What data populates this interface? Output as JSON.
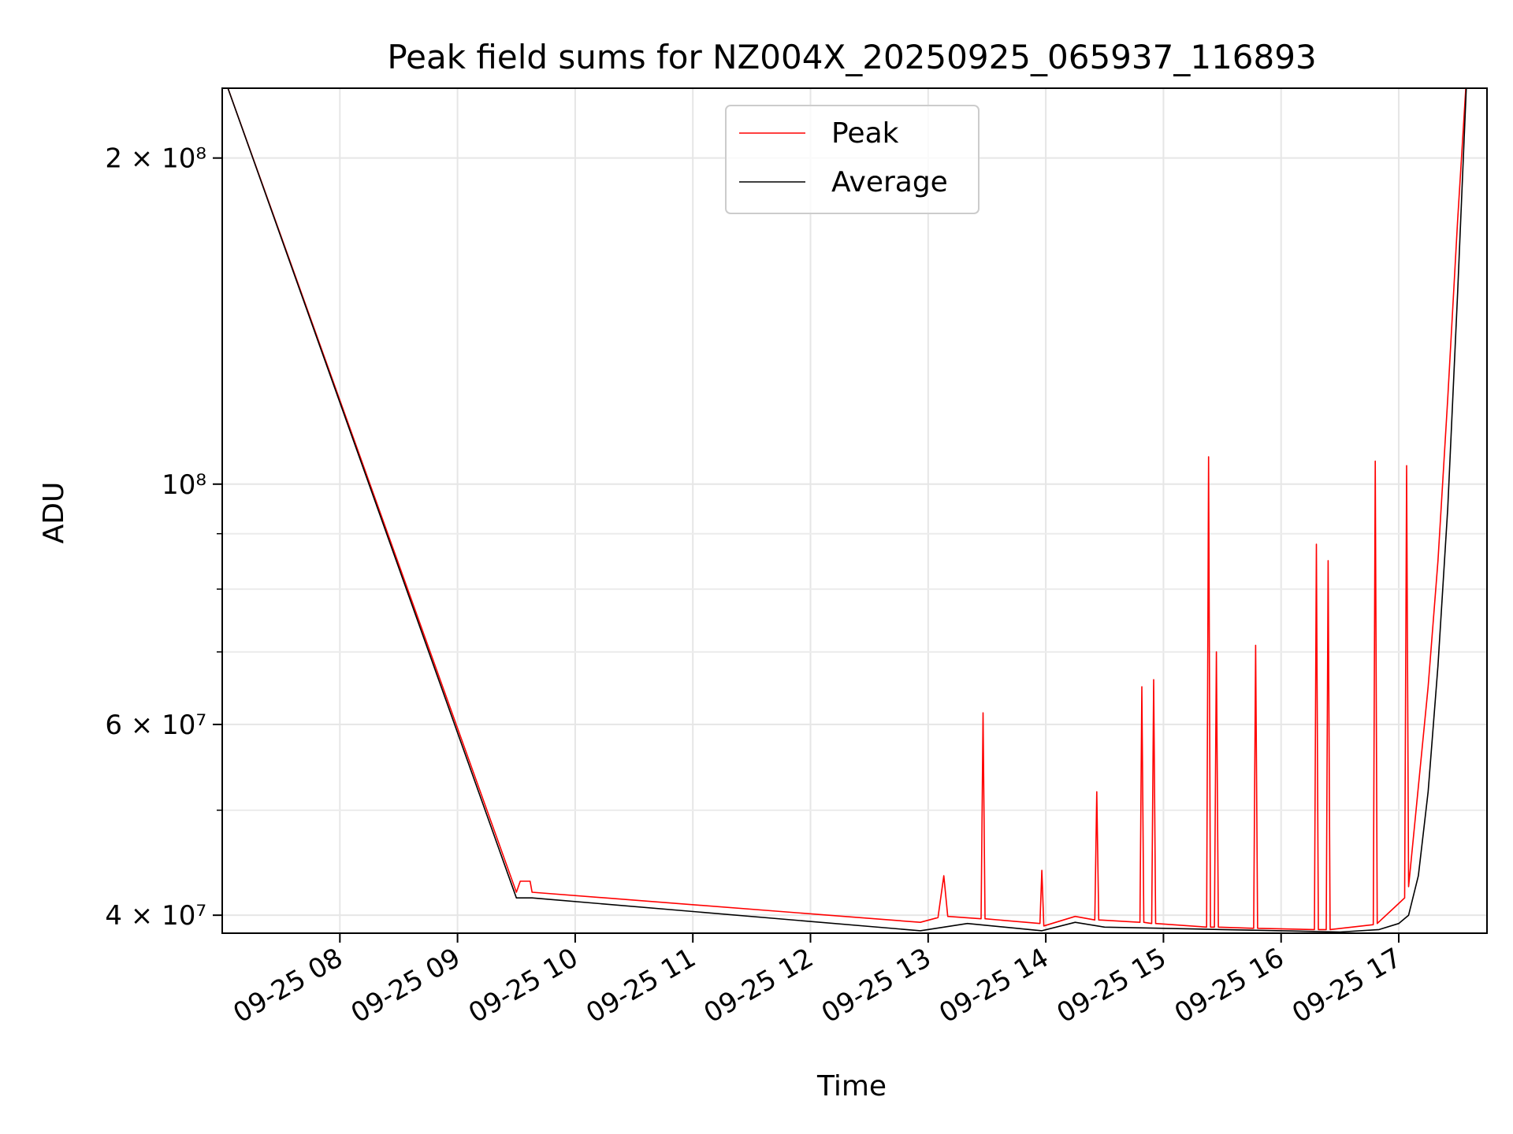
{
  "chart_data": {
    "type": "line",
    "title": "Peak field sums for NZ004X_20250925_065937_116893",
    "xlabel": "Time",
    "ylabel": "ADU",
    "yscale": "log",
    "grid": true,
    "legend_position": "upper center",
    "xlim": [
      "2025-09-25 07:00",
      "2025-09-25 17:45"
    ],
    "ylim": [
      38500000,
      232000000
    ],
    "x_ticks": [
      "09-25 08",
      "09-25 09",
      "09-25 10",
      "09-25 11",
      "09-25 12",
      "09-25 13",
      "09-25 14",
      "09-25 15",
      "09-25 16",
      "09-25 17"
    ],
    "y_tick_labels": [
      {
        "value": 40000000,
        "label": "4 × 10⁷"
      },
      {
        "value": 60000000,
        "label": "6 × 10⁷"
      },
      {
        "value": 100000000,
        "label": "10⁸"
      },
      {
        "value": 200000000,
        "label": "2 × 10⁸"
      }
    ],
    "y_minor_ticks": [
      50000000,
      70000000,
      80000000,
      90000000
    ],
    "series": [
      {
        "name": "Peak",
        "color": "#ff0000",
        "points": [
          [
            "2025-09-25 07:00",
            240000000
          ],
          [
            "2025-09-25 09:30",
            42000000
          ],
          [
            "2025-09-25 09:32",
            43000000
          ],
          [
            "2025-09-25 09:37",
            43000000
          ],
          [
            "2025-09-25 09:38",
            42000000
          ],
          [
            "2025-09-25 12:56",
            39400000
          ],
          [
            "2025-09-25 13:05",
            39800000
          ],
          [
            "2025-09-25 13:08",
            43500000
          ],
          [
            "2025-09-25 13:10",
            39900000
          ],
          [
            "2025-09-25 13:27",
            39700000
          ],
          [
            "2025-09-25 13:28",
            61500000
          ],
          [
            "2025-09-25 13:29",
            39700000
          ],
          [
            "2025-09-25 13:57",
            39300000
          ],
          [
            "2025-09-25 13:58",
            44000000
          ],
          [
            "2025-09-25 13:59",
            39100000
          ],
          [
            "2025-09-25 14:15",
            39900000
          ],
          [
            "2025-09-25 14:25",
            39600000
          ],
          [
            "2025-09-25 14:26",
            52000000
          ],
          [
            "2025-09-25 14:27",
            39600000
          ],
          [
            "2025-09-25 14:48",
            39400000
          ],
          [
            "2025-09-25 14:49",
            65000000
          ],
          [
            "2025-09-25 14:50",
            39400000
          ],
          [
            "2025-09-25 14:54",
            39300000
          ],
          [
            "2025-09-25 14:55",
            66000000
          ],
          [
            "2025-09-25 14:56",
            39300000
          ],
          [
            "2025-09-25 15:22",
            39000000
          ],
          [
            "2025-09-25 15:23",
            106000000
          ],
          [
            "2025-09-25 15:24",
            39000000
          ],
          [
            "2025-09-25 15:26",
            39000000
          ],
          [
            "2025-09-25 15:27",
            70000000
          ],
          [
            "2025-09-25 15:28",
            39000000
          ],
          [
            "2025-09-25 15:46",
            38900000
          ],
          [
            "2025-09-25 15:47",
            71000000
          ],
          [
            "2025-09-25 15:48",
            38900000
          ],
          [
            "2025-09-25 16:17",
            38800000
          ],
          [
            "2025-09-25 16:18",
            88000000
          ],
          [
            "2025-09-25 16:19",
            38800000
          ],
          [
            "2025-09-25 16:23",
            38800000
          ],
          [
            "2025-09-25 16:24",
            85000000
          ],
          [
            "2025-09-25 16:25",
            38800000
          ],
          [
            "2025-09-25 16:47",
            39200000
          ],
          [
            "2025-09-25 16:48",
            105000000
          ],
          [
            "2025-09-25 16:49",
            39300000
          ],
          [
            "2025-09-25 17:03",
            41500000
          ],
          [
            "2025-09-25 17:04",
            104000000
          ],
          [
            "2025-09-25 17:05",
            42500000
          ],
          [
            "2025-09-25 17:15",
            65000000
          ],
          [
            "2025-09-25 17:20",
            85000000
          ],
          [
            "2025-09-25 17:25",
            120000000
          ],
          [
            "2025-09-25 17:30",
            175000000
          ],
          [
            "2025-09-25 17:35",
            245000000
          ]
        ]
      },
      {
        "name": "Average",
        "color": "#000000",
        "points": [
          [
            "2025-09-25 07:00",
            240000000
          ],
          [
            "2025-09-25 09:30",
            41500000
          ],
          [
            "2025-09-25 09:38",
            41500000
          ],
          [
            "2025-09-25 12:56",
            38700000
          ],
          [
            "2025-09-25 13:20",
            39300000
          ],
          [
            "2025-09-25 13:58",
            38700000
          ],
          [
            "2025-09-25 14:15",
            39400000
          ],
          [
            "2025-09-25 14:30",
            39000000
          ],
          [
            "2025-09-25 15:00",
            38900000
          ],
          [
            "2025-09-25 15:30",
            38800000
          ],
          [
            "2025-09-25 16:00",
            38700000
          ],
          [
            "2025-09-25 16:30",
            38600000
          ],
          [
            "2025-09-25 16:50",
            38800000
          ],
          [
            "2025-09-25 17:00",
            39300000
          ],
          [
            "2025-09-25 17:05",
            40000000
          ],
          [
            "2025-09-25 17:10",
            43500000
          ],
          [
            "2025-09-25 17:15",
            52000000
          ],
          [
            "2025-09-25 17:20",
            68000000
          ],
          [
            "2025-09-25 17:25",
            95000000
          ],
          [
            "2025-09-25 17:30",
            150000000
          ],
          [
            "2025-09-25 17:35",
            245000000
          ]
        ]
      }
    ]
  }
}
